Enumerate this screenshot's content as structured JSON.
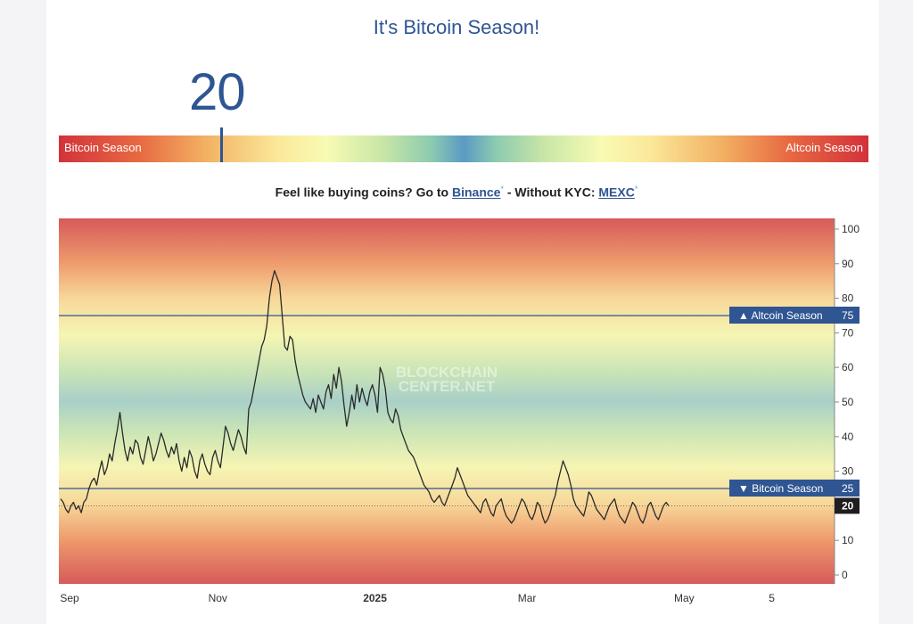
{
  "page": {
    "title": "It's Bitcoin Season!",
    "current_value": "20",
    "gauge": {
      "left_label": "Bitcoin Season",
      "right_label": "Altcoin Season",
      "value": 20,
      "min": 0,
      "max": 100
    },
    "promo": {
      "prefix": "Feel like buying coins? Go to ",
      "link1": "Binance",
      "mid": " - Without KYC: ",
      "link2": "MEXC",
      "mark": "*"
    },
    "watermark": [
      "BLOCKCHAIN",
      "CENTER.NET"
    ]
  },
  "colors": {
    "brand_blue": "#2f5592",
    "line": "#2a2a2a",
    "red": "#d2323b",
    "blue": "#5b9ac4"
  },
  "chart_data": {
    "type": "line",
    "y_range": [
      0,
      100
    ],
    "y_ticks": [
      0,
      10,
      20,
      30,
      40,
      50,
      60,
      70,
      80,
      90,
      100
    ],
    "x_tick_labels": [
      {
        "label": "Sep",
        "index": 0
      },
      {
        "label": "Nov",
        "index": 61
      },
      {
        "label": "2025",
        "index": 122
      },
      {
        "label": "Mar",
        "index": 181
      },
      {
        "label": "May",
        "index": 242
      },
      {
        "label": "5",
        "index": 276
      }
    ],
    "reference_lines": [
      {
        "value": 75,
        "label": "▲ Altcoin Season",
        "value_label": "75"
      },
      {
        "value": 25,
        "label": "▼ Bitcoin Season",
        "value_label": "25"
      }
    ],
    "current": {
      "value": 20,
      "label": "20"
    },
    "series": [
      {
        "values": [
          22,
          21,
          19,
          18,
          20,
          21,
          19,
          20,
          18,
          21,
          22,
          25,
          27,
          28,
          26,
          30,
          33,
          29,
          31,
          35,
          33,
          38,
          42,
          47,
          41,
          36,
          33,
          37,
          35,
          39,
          38,
          34,
          32,
          36,
          40,
          37,
          33,
          35,
          38,
          41,
          39,
          36,
          34,
          37,
          35,
          38,
          33,
          30,
          34,
          31,
          36,
          34,
          30,
          28,
          33,
          35,
          32,
          30,
          29,
          34,
          36,
          33,
          31,
          37,
          43,
          41,
          38,
          36,
          39,
          42,
          40,
          37,
          35,
          48,
          50,
          54,
          58,
          62,
          66,
          68,
          72,
          80,
          85,
          88,
          86,
          84,
          75,
          66,
          65,
          69,
          68,
          62,
          58,
          55,
          52,
          50,
          49,
          48,
          51,
          47,
          52,
          50,
          48,
          53,
          55,
          51,
          58,
          54,
          60,
          56,
          49,
          43,
          47,
          52,
          48,
          55,
          50,
          54,
          51,
          49,
          53,
          55,
          52,
          47,
          60,
          58,
          54,
          47,
          45,
          44,
          48,
          46,
          42,
          40,
          38,
          36,
          35,
          34,
          32,
          30,
          28,
          26,
          25,
          24,
          22,
          21,
          22,
          23,
          21,
          20,
          22,
          24,
          26,
          28,
          31,
          29,
          27,
          25,
          23,
          22,
          21,
          20,
          19,
          18,
          21,
          22,
          20,
          18,
          17,
          20,
          21,
          22,
          19,
          17,
          16,
          15,
          16,
          18,
          20,
          22,
          21,
          19,
          17,
          16,
          18,
          21,
          20,
          17,
          15,
          16,
          18,
          21,
          23,
          27,
          30,
          33,
          31,
          29,
          26,
          22,
          20,
          19,
          18,
          17,
          20,
          24,
          23,
          21,
          19,
          18,
          17,
          16,
          18,
          20,
          21,
          22,
          19,
          17,
          16,
          15,
          17,
          19,
          21,
          20,
          18,
          16,
          15,
          17,
          20,
          21,
          19,
          17,
          16,
          18,
          20,
          21,
          20
        ],
        "color": "#2a2a2a"
      }
    ]
  }
}
